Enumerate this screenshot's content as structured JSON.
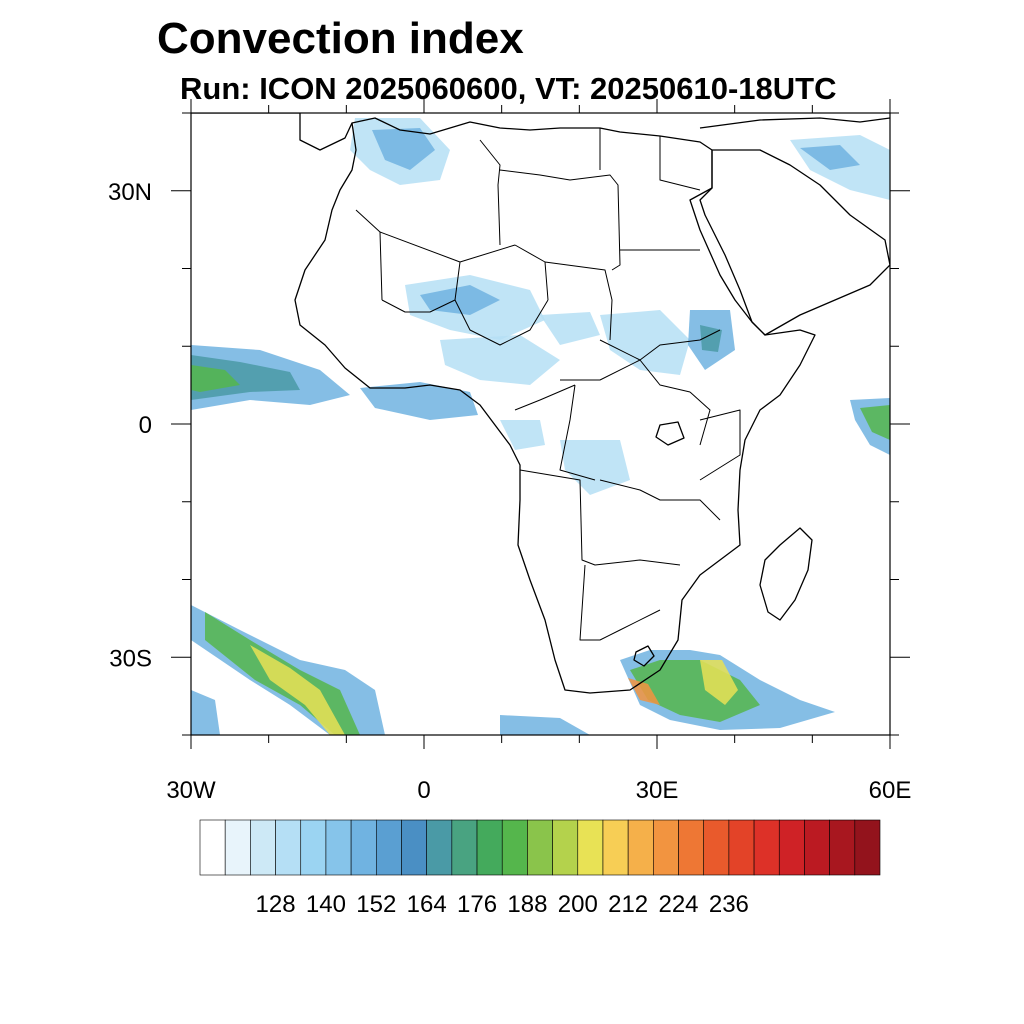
{
  "title": "Convection index",
  "subtitle": "Run: ICON 2025060600,  VT: 20250610-18UTC",
  "axes": {
    "lon": {
      "range": [
        -30,
        60
      ],
      "ticks": [
        {
          "value": -30,
          "label": "30W"
        },
        {
          "value": 0,
          "label": "0"
        },
        {
          "value": 30,
          "label": "30E"
        },
        {
          "value": 60,
          "label": "60E"
        }
      ]
    },
    "lat": {
      "range": [
        -40,
        40
      ],
      "ticks": [
        {
          "value": 30,
          "label": "30N"
        },
        {
          "value": 0,
          "label": "0"
        },
        {
          "value": -30,
          "label": "30S"
        }
      ]
    }
  },
  "colorbar": {
    "labels": [
      "128",
      "140",
      "152",
      "164",
      "176",
      "188",
      "200",
      "212",
      "224",
      "236"
    ],
    "colors": [
      "#ffffff",
      "#e8f4fb",
      "#cde9f6",
      "#b5dff5",
      "#9bd4f2",
      "#86c4ea",
      "#70b3e1",
      "#5a9fd2",
      "#4a8fc4",
      "#4a9aa6",
      "#49a381",
      "#44aa5c",
      "#55b64c",
      "#8ac44b",
      "#b4d24c",
      "#e8e255",
      "#f7ce55",
      "#f5b04a",
      "#f29440",
      "#ee7734",
      "#e95a2c",
      "#e34328",
      "#dd3128",
      "#cf2226",
      "#bb1a22",
      "#a8171f",
      "#93131c"
    ]
  },
  "map_colors": {
    "coastline": "#000000",
    "field_light": "#b5dff5",
    "field_mid": "#70b3e1",
    "field_teal": "#4a9aa6",
    "field_green": "#55b64c",
    "field_yellow": "#e8e255",
    "field_orange": "#f29440"
  }
}
